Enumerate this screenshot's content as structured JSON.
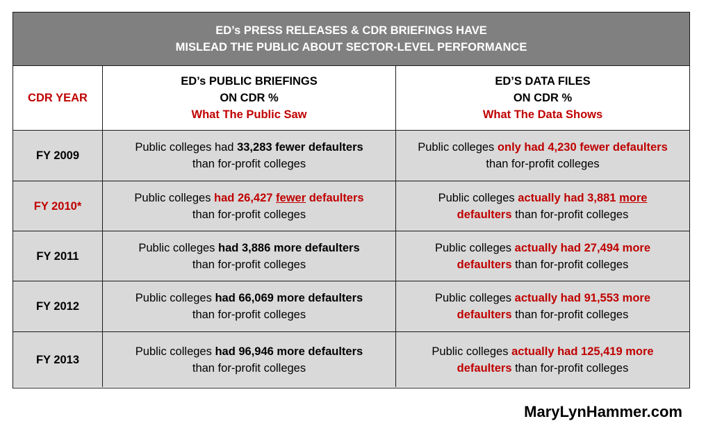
{
  "title": {
    "line1": "ED’s PRESS RELEASES & CDR BRIEFINGS HAVE",
    "line2": "MISLEAD THE PUBLIC ABOUT SECTOR-LEVEL PERFORMANCE"
  },
  "header": {
    "year_label": "CDR YEAR",
    "col2": {
      "line1": "ED’s PUBLIC BRIEFINGS",
      "line2": "ON CDR %",
      "sub": "What The Public Saw"
    },
    "col3": {
      "line1": "ED’S DATA FILES",
      "line2": "ON CDR %",
      "sub": "What The Data Shows"
    }
  },
  "rows": [
    {
      "year": "FY 2009",
      "brief": {
        "a": "Public colleges had ",
        "b": "33,283 fewer defaulters",
        "c": "than for-profit colleges"
      },
      "data": {
        "a": "Public colleges ",
        "b": "only had 4,230 fewer defaulters",
        "c": "than for-profit colleges"
      }
    },
    {
      "year": "FY 2010*",
      "brief": {
        "a": "Public colleges ",
        "b": "had 26,427 ",
        "u": "fewer",
        "d": " defaulters",
        "c": "than for-profit colleges"
      },
      "data": {
        "a": "Public colleges ",
        "b": "actually had 3,881 ",
        "u": "more",
        "d": "defaulters",
        "c": " than for-profit colleges"
      }
    },
    {
      "year": "FY 2011",
      "brief": {
        "a": "Public colleges ",
        "b": "had 3,886 more defaulters",
        "c": "than for-profit colleges"
      },
      "data": {
        "a": "Public colleges ",
        "b": "actually had 27,494 more",
        "d": "defaulters",
        "c": " than for-profit colleges"
      }
    },
    {
      "year": "FY 2012",
      "brief": {
        "a": "Public colleges ",
        "b": "had 66,069 more defaulters",
        "c": "than for-profit colleges"
      },
      "data": {
        "a": "Public colleges ",
        "b": "actually had 91,553 more",
        "d": "defaulters",
        "c": " than for-profit colleges"
      }
    },
    {
      "year": "FY 2013",
      "brief": {
        "a": "Public colleges ",
        "b": "had 96,946 more defaulters",
        "c": "than for-profit colleges"
      },
      "data": {
        "a": "Public colleges ",
        "b": "actually had 125,419 more",
        "d": "defaulters",
        "c": " than for-profit colleges"
      }
    }
  ],
  "footer": "MaryLynHammer.com",
  "colors": {
    "accent_red": "#c00000",
    "title_bg": "#808080",
    "row_bg": "#d9d9d9"
  }
}
